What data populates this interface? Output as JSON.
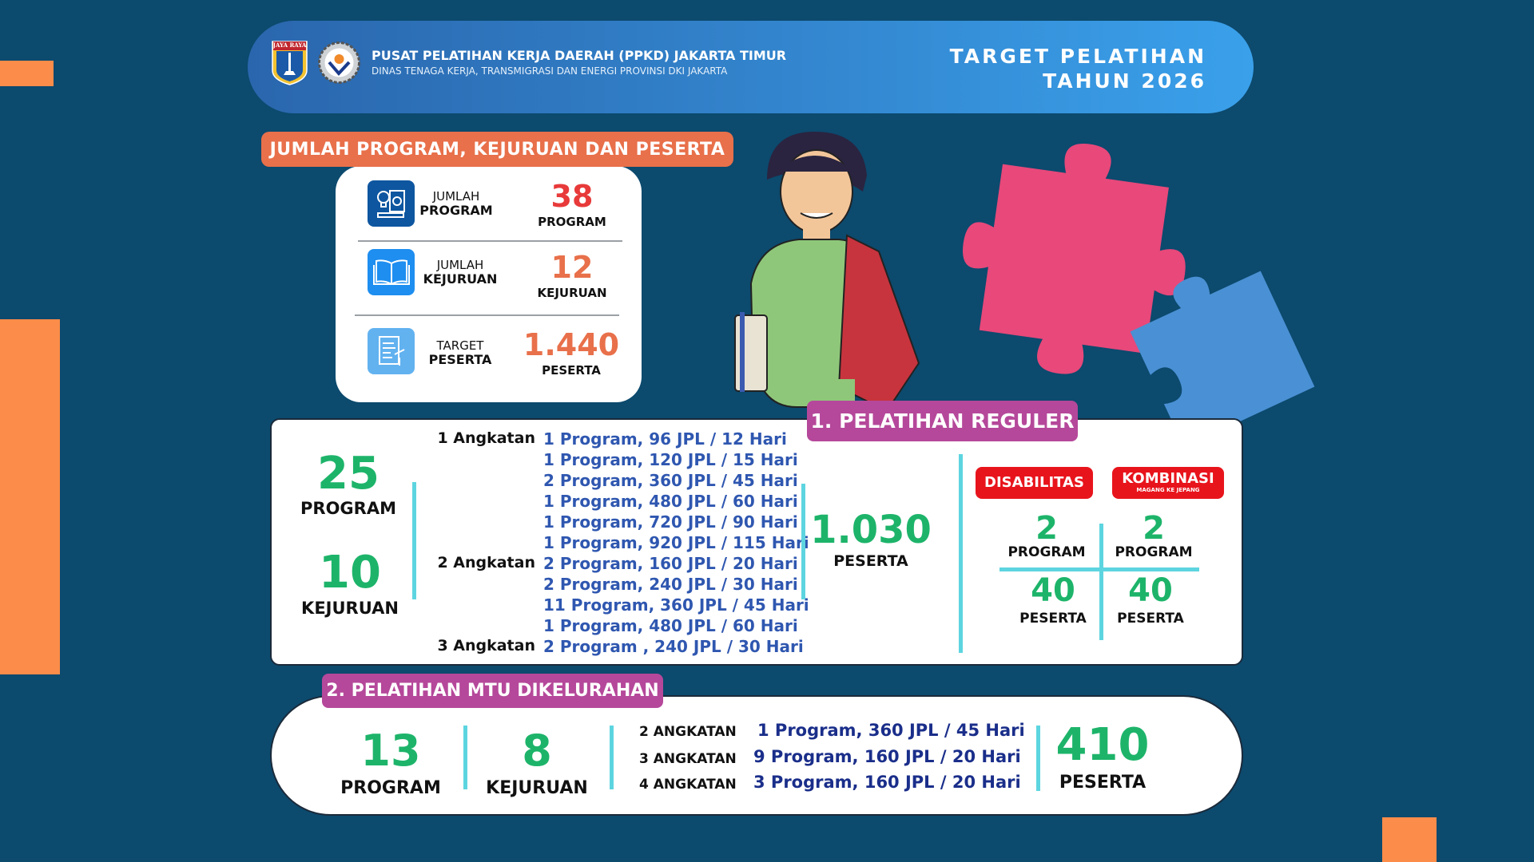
{
  "header": {
    "title": "PUSAT PELATIHAN KERJA DAERAH (PPKD) JAKARTA TIMUR",
    "subtitle": "DINAS TENAGA KERJA, TRANSMIGRASI DAN ENERGI PROVINSI DKI JAKARTA",
    "right_line1": "TARGET PELATIHAN",
    "right_line2": "TAHUN 2026",
    "logo1_text": "JAYA RAYA",
    "logo2_text": "PPKD"
  },
  "summary": {
    "title": "JUMLAH PROGRAM, KEJURUAN DAN PESERTA",
    "rows": [
      {
        "label_top": "JUMLAH",
        "label_bottom": "PROGRAM",
        "value": "38",
        "unit": "PROGRAM",
        "color": "#e83a3a"
      },
      {
        "label_top": "JUMLAH",
        "label_bottom": "KEJURUAN",
        "value": "12",
        "unit": "KEJURUAN",
        "color": "#e8704a"
      },
      {
        "label_top": "TARGET",
        "label_bottom": "PESERTA",
        "value": "1.440",
        "unit": "PESERTA",
        "color": "#e8704a"
      }
    ]
  },
  "reguler": {
    "title": "1. PELATIHAN REGULER",
    "program_count": "25",
    "program_label": "PROGRAM",
    "kejuruan_count": "10",
    "kejuruan_label": "KEJURUAN",
    "angkatan": [
      "1 Angkatan",
      "2 Angkatan",
      "3 Angkatan"
    ],
    "programs": [
      "1 Program, 96 JPL  / 12 Hari",
      "1 Program, 120 JPL / 15 Hari",
      "2 Program, 360 JPL / 45 Hari",
      "1 Program, 480 JPL / 60 Hari",
      "1 Program, 720 JPL / 90 Hari",
      "1 Program, 920 JPL / 115 Hari",
      "2 Program, 160 JPL / 20 Hari",
      "2 Program, 240 JPL / 30 Hari",
      "11 Program, 360 JPL / 45 Hari",
      "1 Program, 480 JPL / 60 Hari",
      "2 Program , 240 JPL / 30 Hari"
    ],
    "peserta_count": "1.030",
    "peserta_label": "PESERTA",
    "disabilitas": {
      "label": "DISABILITAS",
      "program": "2",
      "program_label": "PROGRAM",
      "peserta": "40",
      "peserta_label": "PESERTA"
    },
    "kombinasi": {
      "label": "KOMBINASI",
      "sublabel": "MAGANG KE JEPANG",
      "program": "2",
      "program_label": "PROGRAM",
      "peserta": "40",
      "peserta_label": "PESERTA"
    }
  },
  "mtu": {
    "title": "2. PELATIHAN MTU DIKELURAHAN",
    "program_count": "13",
    "program_label": "PROGRAM",
    "kejuruan_count": "8",
    "kejuruan_label": "KEJURUAN",
    "angkatan": [
      "2 ANGKATAN",
      "3 ANGKATAN",
      "4 ANGKATAN"
    ],
    "programs": [
      "1 Program, 360 JPL / 45 Hari",
      "9 Program, 160 JPL /  20 Hari",
      "3 Program, 160 JPL / 20 Hari"
    ],
    "peserta_count": "410",
    "peserta_label": "PESERTA"
  },
  "colors": {
    "background": "#0c4a6e",
    "accent_orange": "#fb8c4a",
    "green": "#1db46a",
    "purple": "#b5489a",
    "red": "#e8141c"
  }
}
